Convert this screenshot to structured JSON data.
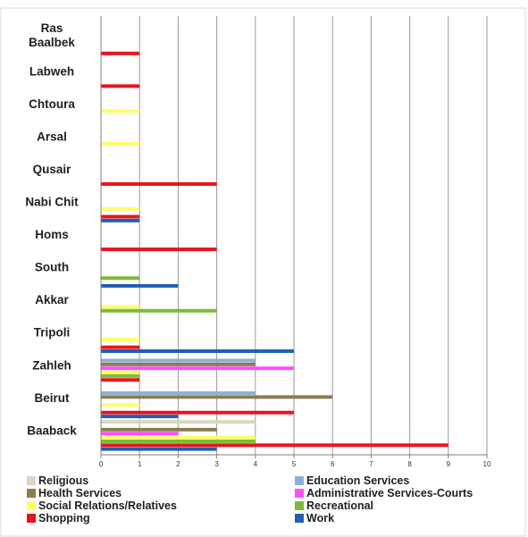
{
  "chart_data": {
    "type": "bar",
    "orientation": "horizontal",
    "title": "",
    "xlabel": "",
    "ylabel": "",
    "xlim": [
      0,
      10
    ],
    "xticks": [
      0,
      1,
      2,
      3,
      4,
      5,
      6,
      7,
      8,
      9,
      10
    ],
    "grid": "vertical",
    "legend_position": "bottom",
    "categories": [
      "Ras Baalbek",
      "Labweh",
      "Chtoura",
      "Arsal",
      "Qusair",
      "Nabi Chit",
      "Homs",
      "South",
      "Akkar",
      "Tripoli",
      "Zahleh",
      "Beirut",
      "Baaback"
    ],
    "series": [
      {
        "name": "Religious",
        "color": "#dcd6bc",
        "values": [
          0,
          0,
          0,
          0,
          0,
          0,
          0,
          0,
          0,
          0,
          0,
          0,
          4
        ]
      },
      {
        "name": "Education Services",
        "color": "#8eb0d8",
        "values": [
          0,
          0,
          0,
          0,
          0,
          0,
          0,
          0,
          0,
          0,
          4,
          4,
          0
        ]
      },
      {
        "name": "Health Services",
        "color": "#8a7d4e",
        "values": [
          0,
          0,
          0,
          0,
          0,
          0,
          0,
          0,
          0,
          0,
          4,
          6,
          3
        ]
      },
      {
        "name": "Administrative Services-Courts",
        "color": "#ff4dff",
        "values": [
          0,
          0,
          0,
          0,
          0,
          0,
          0,
          0,
          0,
          0,
          5,
          0,
          2
        ]
      },
      {
        "name": "Social Relations/Relatives",
        "color": "#ffff66",
        "values": [
          0,
          0,
          1,
          1,
          0,
          1,
          0,
          0,
          1,
          1,
          1,
          1,
          4
        ]
      },
      {
        "name": "Recreational",
        "color": "#7cbb3a",
        "values": [
          0,
          0,
          0,
          0,
          0,
          0,
          0,
          1,
          3,
          0,
          1,
          0,
          4
        ]
      },
      {
        "name": "Shopping",
        "color": "#e8141e",
        "values": [
          1,
          1,
          0,
          0,
          3,
          1,
          3,
          0,
          0,
          1,
          1,
          5,
          9
        ]
      },
      {
        "name": "Work",
        "color": "#1f5fb4",
        "values": [
          0,
          0,
          0,
          0,
          0,
          1,
          0,
          2,
          0,
          5,
          0,
          2,
          3
        ]
      }
    ],
    "category_labels_display": [
      [
        "Ras",
        "Baalbek"
      ],
      [
        "Labweh"
      ],
      [
        "Chtoura"
      ],
      [
        "Arsal"
      ],
      [
        "Qusair"
      ],
      [
        "Nabi Chit"
      ],
      [
        "Homs"
      ],
      [
        "South"
      ],
      [
        "Akkar"
      ],
      [
        "Tripoli"
      ],
      [
        "Zahleh"
      ],
      [
        "Beirut"
      ],
      [
        "Baaback"
      ]
    ]
  }
}
